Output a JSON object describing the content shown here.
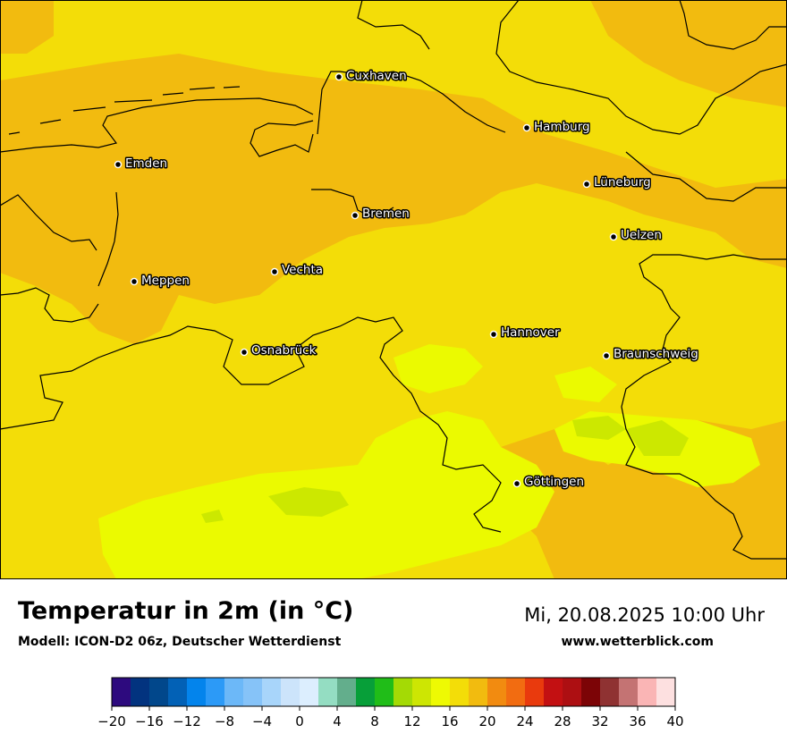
{
  "header": {
    "title": "Temperatur in 2m (in °C)",
    "model": "Modell: ICON-D2 06z, Deutscher Wetterdienst",
    "datetime": "Mi, 20.08.2025 10:00 Uhr",
    "website": "www.wetterblick.com"
  },
  "map": {
    "cities": [
      {
        "name": "Cuxhaven"
      },
      {
        "name": "Hamburg"
      },
      {
        "name": "Emden"
      },
      {
        "name": "Lüneburg"
      },
      {
        "name": "Bremen"
      },
      {
        "name": "Uelzen"
      },
      {
        "name": "Vechta"
      },
      {
        "name": "Meppen"
      },
      {
        "name": "Hannover"
      },
      {
        "name": "Osnabrück"
      },
      {
        "name": "Braunschweig"
      },
      {
        "name": "Göttingen"
      }
    ],
    "colors": {
      "band_14_16": "#ebfa00",
      "band_16_18": "#f3dd08",
      "band_18_20": "#f2bb0f",
      "band_12_14": "#cce800",
      "border": "#000000"
    }
  },
  "legend": {
    "ticks": [
      "−20",
      "−16",
      "−12",
      "−8",
      "−4",
      "0",
      "4",
      "8",
      "12",
      "16",
      "20",
      "24",
      "28",
      "32",
      "36",
      "40"
    ],
    "min": -20,
    "max": 40,
    "step": 2,
    "colors": [
      "#2d0a7e",
      "#02337f",
      "#01478b",
      "#0261b6",
      "#0384ec",
      "#2c9af7",
      "#6cb8f8",
      "#86c3f8",
      "#a8d5fa",
      "#cce4fb",
      "#dceefe",
      "#94ddc2",
      "#63ae8c",
      "#079f39",
      "#20bd18",
      "#a4da05",
      "#cde603",
      "#eefa03",
      "#f3dd08",
      "#f2bb0f",
      "#f28b10",
      "#f26c11",
      "#e93a0d",
      "#c31012",
      "#ad0f12",
      "#7c0406",
      "#8f3232",
      "#c47373",
      "#fab5b5",
      "#fde0e0"
    ]
  }
}
